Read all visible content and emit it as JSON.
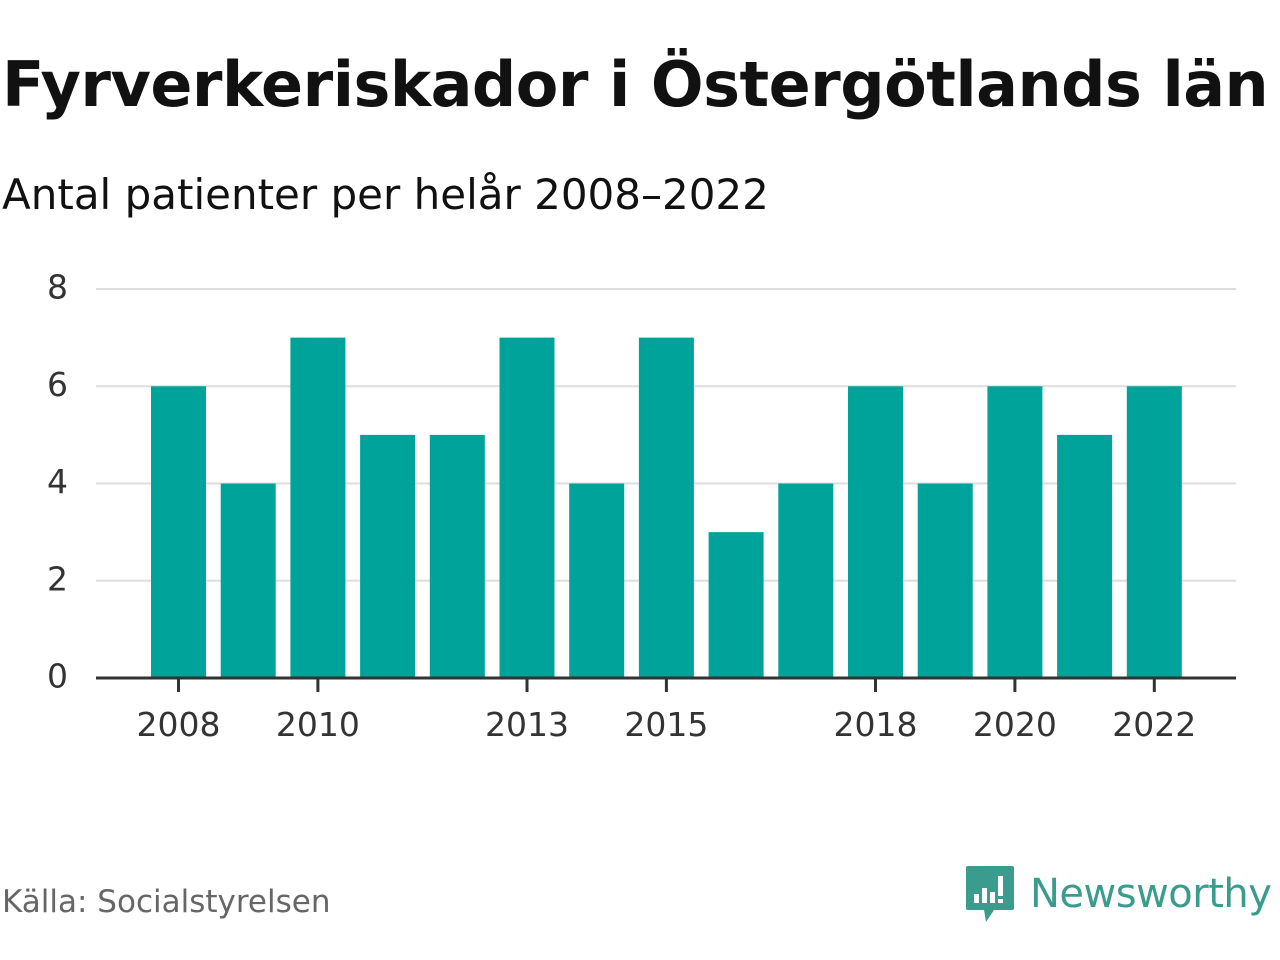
{
  "chart_data": {
    "type": "bar",
    "title": "Fyrverkeriskador i Östergötlands län",
    "subtitle": "Antal patienter per helår 2008–2022",
    "categories": [
      "2008",
      "2009",
      "2010",
      "2011",
      "2012",
      "2013",
      "2014",
      "2015",
      "2016",
      "2017",
      "2018",
      "2019",
      "2020",
      "2021",
      "2022"
    ],
    "values": [
      6,
      4,
      7,
      5,
      5,
      7,
      4,
      7,
      3,
      4,
      6,
      4,
      6,
      5,
      6
    ],
    "x_tick_labels": [
      "2008",
      "2010",
      "2013",
      "2015",
      "2018",
      "2020",
      "2022"
    ],
    "y_ticks": [
      "0",
      "2",
      "4",
      "6",
      "8"
    ],
    "ylim": [
      0,
      8
    ],
    "xlabel": "",
    "ylabel": "",
    "grid": true,
    "bar_color": "#00a39a"
  },
  "source": "Källa: Socialstyrelsen",
  "brand": {
    "name": "Newsworthy",
    "icon": "newsworthy-logo-icon",
    "color": "#3a9c8c"
  }
}
